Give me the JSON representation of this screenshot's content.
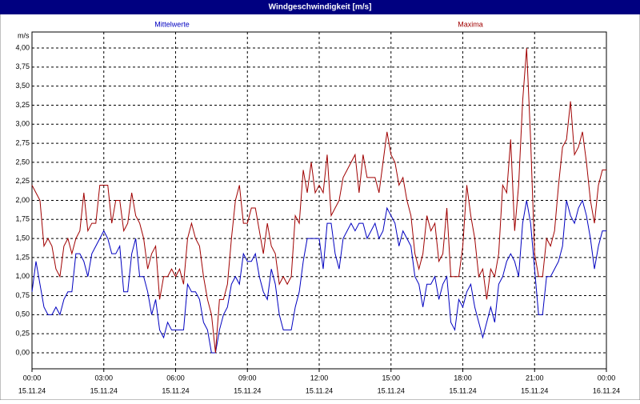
{
  "chart_data": {
    "type": "line",
    "title": "Windgeschwindigkeit [m/s]",
    "y_label": "m/s",
    "xlim": [
      0,
      1440
    ],
    "xticks": [
      {
        "value": 0,
        "label": [
          "00:00",
          "15.11.24"
        ]
      },
      {
        "value": 180,
        "label": [
          "03:00",
          "15.11.24"
        ]
      },
      {
        "value": 360,
        "label": [
          "06:00",
          "15.11.24"
        ]
      },
      {
        "value": 540,
        "label": [
          "09:00",
          "15.11.24"
        ]
      },
      {
        "value": 720,
        "label": [
          "12:00",
          "15.11.24"
        ]
      },
      {
        "value": 900,
        "label": [
          "15:00",
          "15.11.24"
        ]
      },
      {
        "value": 1080,
        "label": [
          "18:00",
          "15.11.24"
        ]
      },
      {
        "value": 1260,
        "label": [
          "21:00",
          "15.11.24"
        ]
      },
      {
        "value": 1440,
        "label": [
          "00:00",
          "16.11.24"
        ]
      }
    ],
    "ylim": [
      -0.21,
      4.21
    ],
    "yticks": [
      {
        "value": 0,
        "label": "0,00"
      },
      {
        "value": 0.25,
        "label": "0,25"
      },
      {
        "value": 0.5,
        "label": "0,50"
      },
      {
        "value": 0.75,
        "label": "0,75"
      },
      {
        "value": 1,
        "label": "1,00"
      },
      {
        "value": 1.25,
        "label": "1,25"
      },
      {
        "value": 1.5,
        "label": "1,50"
      },
      {
        "value": 1.75,
        "label": "1,75"
      },
      {
        "value": 2,
        "label": "2,00"
      },
      {
        "value": 2.25,
        "label": "2,25"
      },
      {
        "value": 2.5,
        "label": "2,50"
      },
      {
        "value": 2.75,
        "label": "2,75"
      },
      {
        "value": 3,
        "label": "3,00"
      },
      {
        "value": 3.25,
        "label": "3,25"
      },
      {
        "value": 3.5,
        "label": "3,50"
      },
      {
        "value": 3.75,
        "label": "3,75"
      },
      {
        "value": 4,
        "label": "4,00"
      }
    ],
    "grid": true,
    "x": [
      0,
      10,
      20,
      30,
      40,
      50,
      60,
      70,
      80,
      90,
      100,
      110,
      120,
      130,
      140,
      150,
      160,
      170,
      180,
      190,
      200,
      210,
      220,
      230,
      240,
      250,
      260,
      270,
      280,
      290,
      300,
      310,
      320,
      330,
      340,
      350,
      360,
      370,
      380,
      390,
      400,
      410,
      420,
      430,
      440,
      450,
      460,
      470,
      480,
      490,
      500,
      510,
      520,
      530,
      540,
      550,
      560,
      570,
      580,
      590,
      600,
      610,
      620,
      630,
      640,
      650,
      660,
      670,
      680,
      690,
      700,
      710,
      720,
      730,
      740,
      750,
      760,
      770,
      780,
      790,
      800,
      810,
      820,
      830,
      840,
      850,
      860,
      870,
      880,
      890,
      900,
      910,
      920,
      930,
      940,
      950,
      960,
      970,
      980,
      990,
      1000,
      1010,
      1020,
      1030,
      1040,
      1050,
      1060,
      1070,
      1080,
      1090,
      1100,
      1110,
      1120,
      1130,
      1140,
      1150,
      1160,
      1170,
      1180,
      1190,
      1200,
      1210,
      1220,
      1230,
      1240,
      1250,
      1260,
      1270,
      1280,
      1290,
      1300,
      1310,
      1320,
      1330,
      1340,
      1350,
      1360,
      1370,
      1380,
      1390,
      1400,
      1410,
      1420,
      1430,
      1440
    ],
    "series": [
      {
        "name": "Mittelwerte",
        "color": "#0000c0",
        "values": [
          0.8,
          1.2,
          0.9,
          0.6,
          0.5,
          0.5,
          0.6,
          0.5,
          0.7,
          0.8,
          0.8,
          1.3,
          1.3,
          1.2,
          1.0,
          1.3,
          1.4,
          1.5,
          1.6,
          1.5,
          1.3,
          1.3,
          1.4,
          0.8,
          0.8,
          1.3,
          1.5,
          1.0,
          1.0,
          0.8,
          0.5,
          0.7,
          0.3,
          0.2,
          0.4,
          0.3,
          0.3,
          0.3,
          0.3,
          0.9,
          0.8,
          0.8,
          0.7,
          0.4,
          0.3,
          0.0,
          0.0,
          0.3,
          0.5,
          0.6,
          0.9,
          1.0,
          0.9,
          1.3,
          1.2,
          1.2,
          1.3,
          1.0,
          0.8,
          0.7,
          1.1,
          0.9,
          0.5,
          0.3,
          0.3,
          0.3,
          0.6,
          0.8,
          1.2,
          1.5,
          1.5,
          1.5,
          1.5,
          1.1,
          1.7,
          1.7,
          1.3,
          1.1,
          1.5,
          1.6,
          1.7,
          1.6,
          1.7,
          1.7,
          1.5,
          1.6,
          1.7,
          1.5,
          1.6,
          1.9,
          1.8,
          1.7,
          1.4,
          1.6,
          1.5,
          1.4,
          1.0,
          0.9,
          0.6,
          0.9,
          0.9,
          1.0,
          0.7,
          0.9,
          1.0,
          0.4,
          0.3,
          0.7,
          0.6,
          0.8,
          0.9,
          0.6,
          0.4,
          0.2,
          0.4,
          0.6,
          0.4,
          0.9,
          1.0,
          1.2,
          1.3,
          1.2,
          1.0,
          1.7,
          2.0,
          1.7,
          1.1,
          0.5,
          0.5,
          1.0,
          1.0,
          1.1,
          1.2,
          1.4,
          2.0,
          1.8,
          1.7,
          1.9,
          2.0,
          1.8,
          1.5,
          1.1,
          1.4,
          1.6,
          1.6
        ]
      },
      {
        "name": "Maxima",
        "color": "#a00000",
        "values": [
          2.2,
          2.1,
          2.0,
          1.4,
          1.5,
          1.4,
          1.1,
          1.0,
          1.4,
          1.5,
          1.3,
          1.5,
          1.6,
          2.1,
          1.6,
          1.7,
          1.7,
          2.2,
          2.2,
          2.2,
          1.7,
          2.0,
          2.0,
          1.6,
          1.7,
          2.1,
          1.8,
          1.7,
          1.5,
          1.1,
          1.3,
          1.4,
          0.7,
          1.0,
          1.0,
          1.1,
          1.0,
          1.1,
          0.9,
          1.5,
          1.7,
          1.5,
          1.4,
          1.0,
          0.7,
          0.5,
          0.0,
          0.7,
          0.7,
          0.9,
          1.5,
          2.0,
          2.2,
          1.7,
          1.7,
          1.9,
          1.9,
          1.6,
          1.3,
          1.7,
          1.4,
          1.3,
          0.9,
          1.0,
          0.9,
          1.0,
          1.8,
          1.7,
          2.4,
          2.1,
          2.5,
          2.1,
          2.2,
          2.1,
          2.6,
          1.8,
          1.9,
          2.0,
          2.3,
          2.4,
          2.5,
          2.6,
          2.1,
          2.6,
          2.3,
          2.3,
          2.3,
          2.1,
          2.5,
          2.9,
          2.6,
          2.5,
          2.2,
          2.3,
          2.0,
          1.8,
          1.3,
          1.1,
          1.3,
          1.8,
          1.6,
          1.7,
          1.2,
          1.3,
          1.9,
          1.0,
          1.0,
          1.0,
          1.4,
          2.2,
          1.8,
          1.5,
          1.0,
          1.1,
          0.7,
          1.1,
          1.0,
          1.3,
          2.2,
          2.1,
          2.8,
          1.6,
          2.2,
          3.3,
          4.0,
          2.8,
          1.3,
          1.0,
          1.0,
          1.5,
          1.4,
          1.6,
          2.2,
          2.7,
          2.8,
          3.3,
          2.6,
          2.7,
          2.9,
          2.5,
          2.0,
          1.7,
          2.2,
          2.4,
          2.4
        ]
      }
    ]
  }
}
